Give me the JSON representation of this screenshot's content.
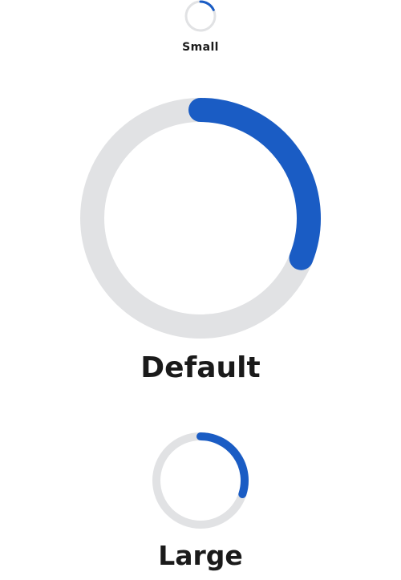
{
  "colors": {
    "track": "#e1e2e4",
    "indicator": "#1a5cc4",
    "label": "#1a1a1a"
  },
  "spinners": [
    {
      "id": "small",
      "label": "Small",
      "progress": 0.18
    },
    {
      "id": "default",
      "label": "Default",
      "progress": 0.31
    },
    {
      "id": "large",
      "label": "Large",
      "progress": 0.3
    }
  ]
}
